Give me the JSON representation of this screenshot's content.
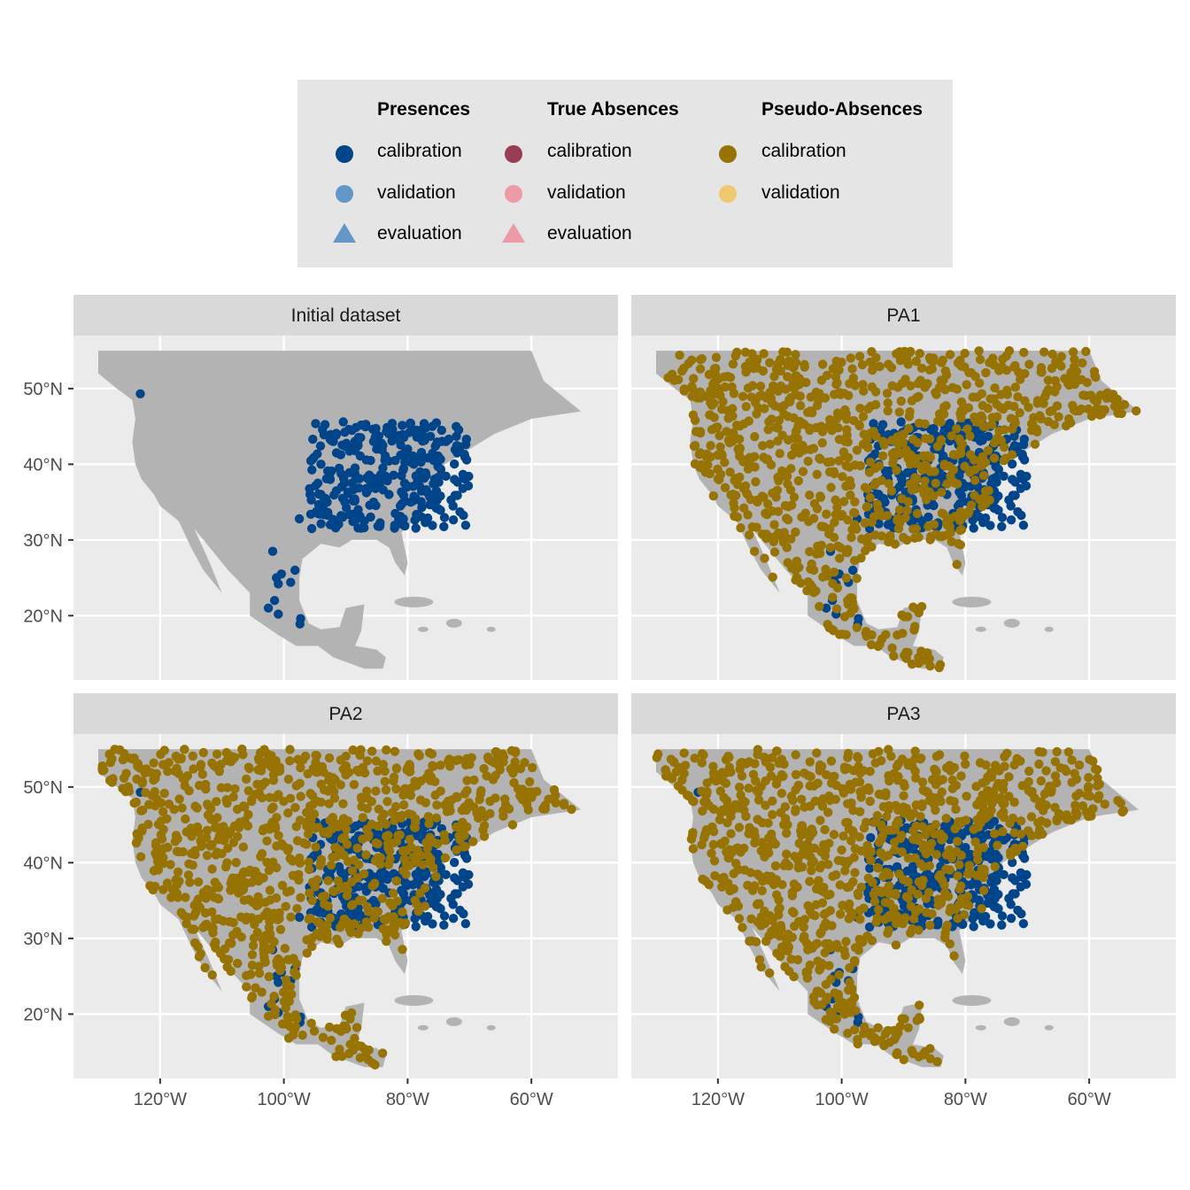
{
  "legend": {
    "groups": [
      {
        "title": "Presences",
        "items": [
          {
            "label": "calibration",
            "shape": "circle",
            "color": "#00458a"
          },
          {
            "label": "validation",
            "shape": "circle",
            "color": "#6497c9"
          },
          {
            "label": "evaluation",
            "shape": "triangle",
            "color": "#6497c9"
          }
        ]
      },
      {
        "title": "True Absences",
        "items": [
          {
            "label": "calibration",
            "shape": "circle",
            "color": "#973d54"
          },
          {
            "label": "validation",
            "shape": "circle",
            "color": "#eb9aa6"
          },
          {
            "label": "evaluation",
            "shape": "triangle",
            "color": "#eb9aa6"
          }
        ]
      },
      {
        "title": "Pseudo-Absences",
        "items": [
          {
            "label": "calibration",
            "shape": "circle",
            "color": "#967303"
          },
          {
            "label": "validation",
            "shape": "circle",
            "color": "#eec96d"
          }
        ]
      }
    ]
  },
  "colors": {
    "panel_bg": "#ebebeb",
    "strip_bg": "#d9d9d9",
    "grid": "#ffffff",
    "land": "#b3b3b3",
    "presence_calibration": "#00458a",
    "pseudo_absence_calibration": "#967303"
  },
  "chart_data": {
    "type": "scatter",
    "facets": [
      "Initial dataset",
      "PA1",
      "PA2",
      "PA3"
    ],
    "xlim": [
      -134,
      -46
    ],
    "ylim": [
      11.5,
      57
    ],
    "x_ticks": [
      -120,
      -100,
      -80,
      -60
    ],
    "x_tick_labels": [
      "120°W",
      "100°W",
      "80°W",
      "60°W"
    ],
    "y_ticks": [
      20,
      30,
      40,
      50
    ],
    "y_tick_labels": [
      "20°N",
      "30°N",
      "40°N",
      "50°N"
    ],
    "land_outline": [
      [
        -130,
        55
      ],
      [
        -60,
        55
      ],
      [
        -58,
        51
      ],
      [
        -52,
        47
      ],
      [
        -60,
        46
      ],
      [
        -66,
        44
      ],
      [
        -70,
        42
      ],
      [
        -74,
        40
      ],
      [
        -76,
        37
      ],
      [
        -76,
        35
      ],
      [
        -81,
        31
      ],
      [
        -80,
        27
      ],
      [
        -80.5,
        25.3
      ],
      [
        -82,
        27
      ],
      [
        -83,
        29
      ],
      [
        -85,
        30
      ],
      [
        -89,
        30
      ],
      [
        -91,
        29
      ],
      [
        -94,
        29.5
      ],
      [
        -97,
        27.5
      ],
      [
        -97.5,
        25
      ],
      [
        -97.5,
        22
      ],
      [
        -96,
        19
      ],
      [
        -94,
        18.2
      ],
      [
        -91,
        18.5
      ],
      [
        -90,
        21
      ],
      [
        -87,
        21.5
      ],
      [
        -87.5,
        18
      ],
      [
        -88.5,
        16
      ],
      [
        -85,
        15.5
      ],
      [
        -83.5,
        14.5
      ],
      [
        -84,
        13
      ],
      [
        -87,
        13
      ],
      [
        -92,
        14.5
      ],
      [
        -94.5,
        16
      ],
      [
        -98,
        16
      ],
      [
        -101,
        17.5
      ],
      [
        -105.5,
        20
      ],
      [
        -105.5,
        23
      ],
      [
        -109,
        26
      ],
      [
        -112,
        29
      ],
      [
        -114.5,
        31.5
      ],
      [
        -112,
        27
      ],
      [
        -110,
        23
      ],
      [
        -113,
        26
      ],
      [
        -115,
        29
      ],
      [
        -117,
        32.5
      ],
      [
        -120,
        34.5
      ],
      [
        -121,
        36
      ],
      [
        -123,
        38
      ],
      [
        -124,
        40
      ],
      [
        -124.5,
        43
      ],
      [
        -124,
        46
      ],
      [
        -124.5,
        48.5
      ],
      [
        -127,
        50
      ],
      [
        -130,
        52
      ]
    ],
    "initial_presences": [
      [
        -123.2,
        49.3
      ],
      [
        -101.8,
        28.5
      ],
      [
        -98.2,
        26
      ],
      [
        -100.4,
        25.5
      ],
      [
        -101.5,
        22
      ],
      [
        -102.5,
        21
      ],
      [
        -100.9,
        20.2
      ],
      [
        -97.3,
        19.6
      ],
      [
        -97.4,
        18.9
      ],
      [
        -98.9,
        24.4
      ],
      [
        -100.9,
        24.2
      ],
      [
        -101.2,
        25
      ],
      [
        -97.5,
        32.8
      ],
      [
        -95.5,
        31.5
      ],
      [
        -92,
        43
      ],
      [
        -89,
        44.5
      ],
      [
        -85,
        42
      ],
      [
        -83,
        44
      ],
      [
        -80,
        42
      ],
      [
        -76,
        41
      ],
      [
        -72,
        41.5
      ],
      [
        -74.5,
        44.5
      ],
      [
        -76,
        45
      ],
      [
        -79.5,
        45.4
      ],
      [
        -82.5,
        45.4
      ],
      [
        -90.4,
        45.6
      ],
      [
        -89.5,
        44.6
      ],
      [
        -77.5,
        43.8
      ],
      [
        -70.5,
        43.3
      ],
      [
        -71.5,
        42.3
      ],
      [
        -73.8,
        43
      ],
      [
        -75.8,
        40.5
      ],
      [
        -78,
        39
      ],
      [
        -80.5,
        37.5
      ],
      [
        -83,
        36
      ],
      [
        -85.5,
        35
      ],
      [
        -88,
        34
      ],
      [
        -90.5,
        33
      ],
      [
        -92.5,
        32
      ],
      [
        -94.5,
        33.5
      ],
      [
        -94,
        36
      ],
      [
        -92.5,
        38
      ],
      [
        -94,
        40
      ],
      [
        -91.5,
        41.5
      ],
      [
        -88.5,
        41.8
      ],
      [
        -86,
        40.5
      ],
      [
        -84,
        39.5
      ],
      [
        -82,
        40.5
      ],
      [
        -86,
        38
      ],
      [
        -89,
        37.5
      ],
      [
        -90.5,
        35.5
      ],
      [
        -87,
        32.5
      ],
      [
        -84.5,
        31.8
      ],
      [
        -82,
        33.5
      ],
      [
        -79.5,
        35
      ],
      [
        -91.5,
        36.5
      ],
      [
        -86.5,
        36.5
      ],
      [
        -81,
        38.5
      ],
      [
        -88.5,
        39.5
      ],
      [
        -77,
        38.5
      ],
      [
        -84,
        42.5
      ],
      [
        -79,
        40
      ],
      [
        -94.5,
        37.5
      ],
      [
        -93,
        35
      ]
    ]
  }
}
